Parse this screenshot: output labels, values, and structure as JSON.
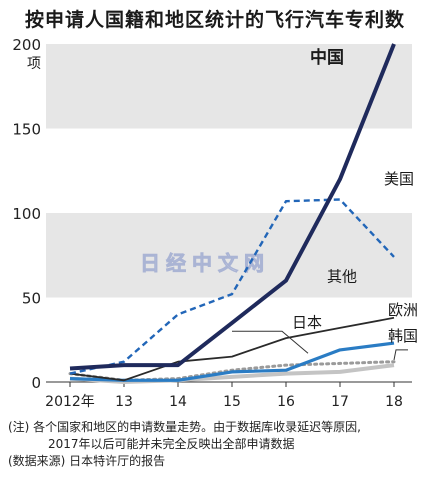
{
  "title": "按申请人国籍和地区统计的飞行汽车专利数",
  "watermark": "日经中文网",
  "notes": {
    "line1": "(注) 各个国家和地区的申请数量走势。由于数据库收录延迟等原因,",
    "line2": "2017年以后可能并未完全反映出全部申请数据",
    "source": "(数据来源) 日本特许厅的报告"
  },
  "colors": {
    "china": "#1f2a5c",
    "usa": "#2266b8",
    "other": "#2a2a2a",
    "japan": "#2a7cc4",
    "europe": "#9a9a9a",
    "korea": "#c4c4c4",
    "band": "#e6e6e6"
  },
  "chart_data": {
    "type": "line",
    "ylabel": "项",
    "ylim": [
      0,
      200
    ],
    "y_ticks": [
      "0",
      "50",
      "100",
      "150",
      "200"
    ],
    "categories": [
      "2012年",
      "13",
      "14",
      "15",
      "16",
      "17",
      "18"
    ],
    "x": [
      2012,
      2013,
      2014,
      2015,
      2016,
      2017,
      2018
    ],
    "series": [
      {
        "key": "china",
        "name": "中国",
        "style": "solid-thick",
        "values": [
          8,
          10,
          10,
          35,
          60,
          120,
          200
        ]
      },
      {
        "key": "usa",
        "name": "美国",
        "style": "dashed",
        "values": [
          5,
          12,
          40,
          52,
          107,
          108,
          74
        ]
      },
      {
        "key": "other",
        "name": "其他",
        "style": "solid",
        "values": [
          5,
          1,
          12,
          15,
          26,
          32,
          38
        ]
      },
      {
        "key": "japan",
        "name": "日本",
        "style": "solid",
        "values": [
          2,
          1,
          1,
          6,
          7,
          19,
          23
        ]
      },
      {
        "key": "europe",
        "name": "欧洲",
        "style": "dotted",
        "values": [
          5,
          1,
          2,
          7,
          10,
          11,
          12
        ]
      },
      {
        "key": "korea",
        "name": "韩国",
        "style": "solid",
        "values": [
          2,
          0,
          1,
          3,
          5,
          6,
          10
        ]
      }
    ]
  }
}
